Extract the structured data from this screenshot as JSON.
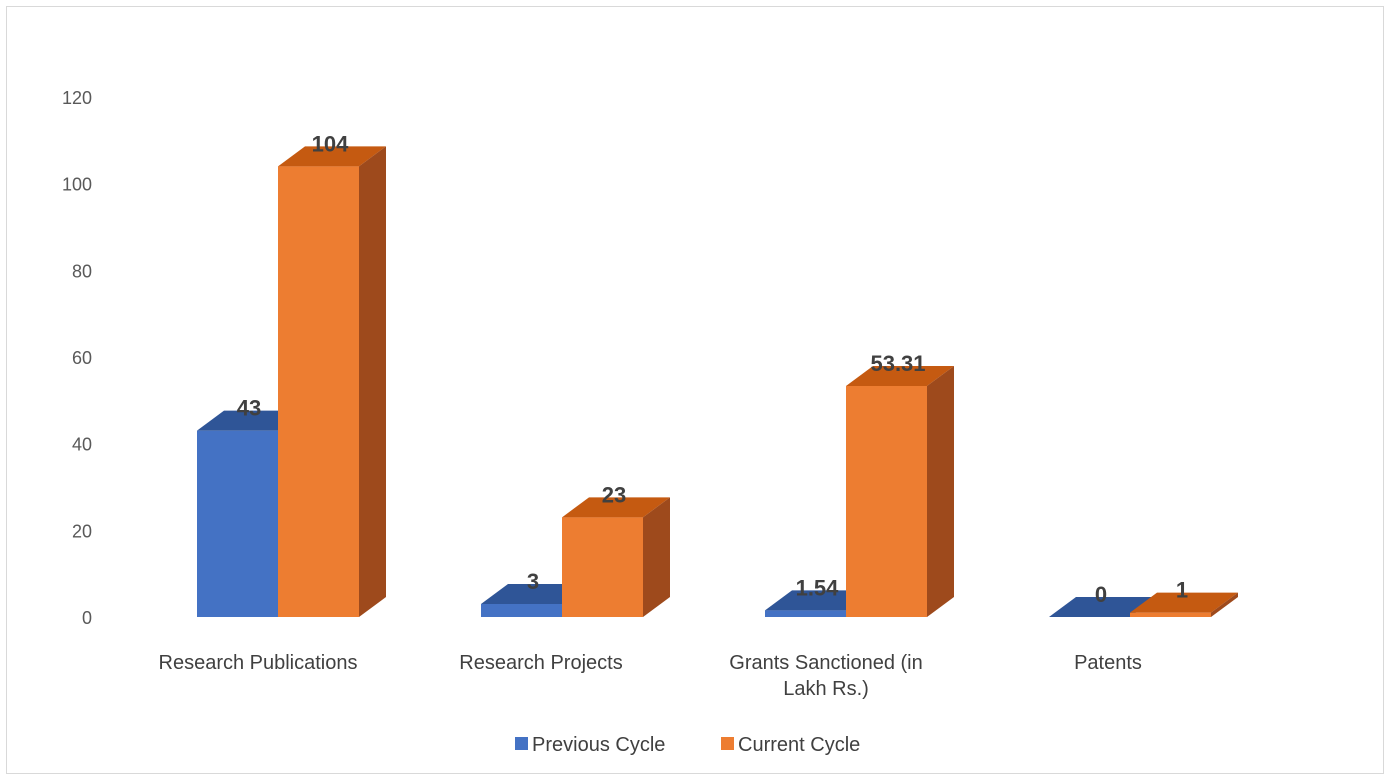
{
  "chart_data": {
    "type": "bar",
    "style": "3d-clustered-column",
    "categories": [
      "Research Publications",
      "Research Projects",
      "Grants Sanctioned (in Lakh Rs.)",
      "Patents"
    ],
    "category_label_lines": [
      [
        "Research Publications"
      ],
      [
        "Research Projects"
      ],
      [
        "Grants Sanctioned (in",
        "Lakh Rs.)"
      ],
      [
        "Patents"
      ]
    ],
    "series": [
      {
        "name": "Previous Cycle",
        "values": [
          43,
          3,
          1.54,
          0
        ],
        "labels": [
          "43",
          "3",
          "1.54",
          "0"
        ],
        "color": "#4472c4",
        "top_color": "#2f5597",
        "side_color": "#2f5597"
      },
      {
        "name": "Current Cycle",
        "values": [
          104,
          23,
          53.31,
          1
        ],
        "labels": [
          "104",
          "23",
          "53.31",
          "1"
        ],
        "color": "#ed7d31",
        "top_color": "#c55a11",
        "side_color": "#9e4a1c"
      }
    ],
    "yticks": [
      0,
      20,
      40,
      60,
      80,
      100,
      120
    ],
    "ylim": [
      0,
      120
    ],
    "grid": false,
    "legend_position": "bottom"
  }
}
